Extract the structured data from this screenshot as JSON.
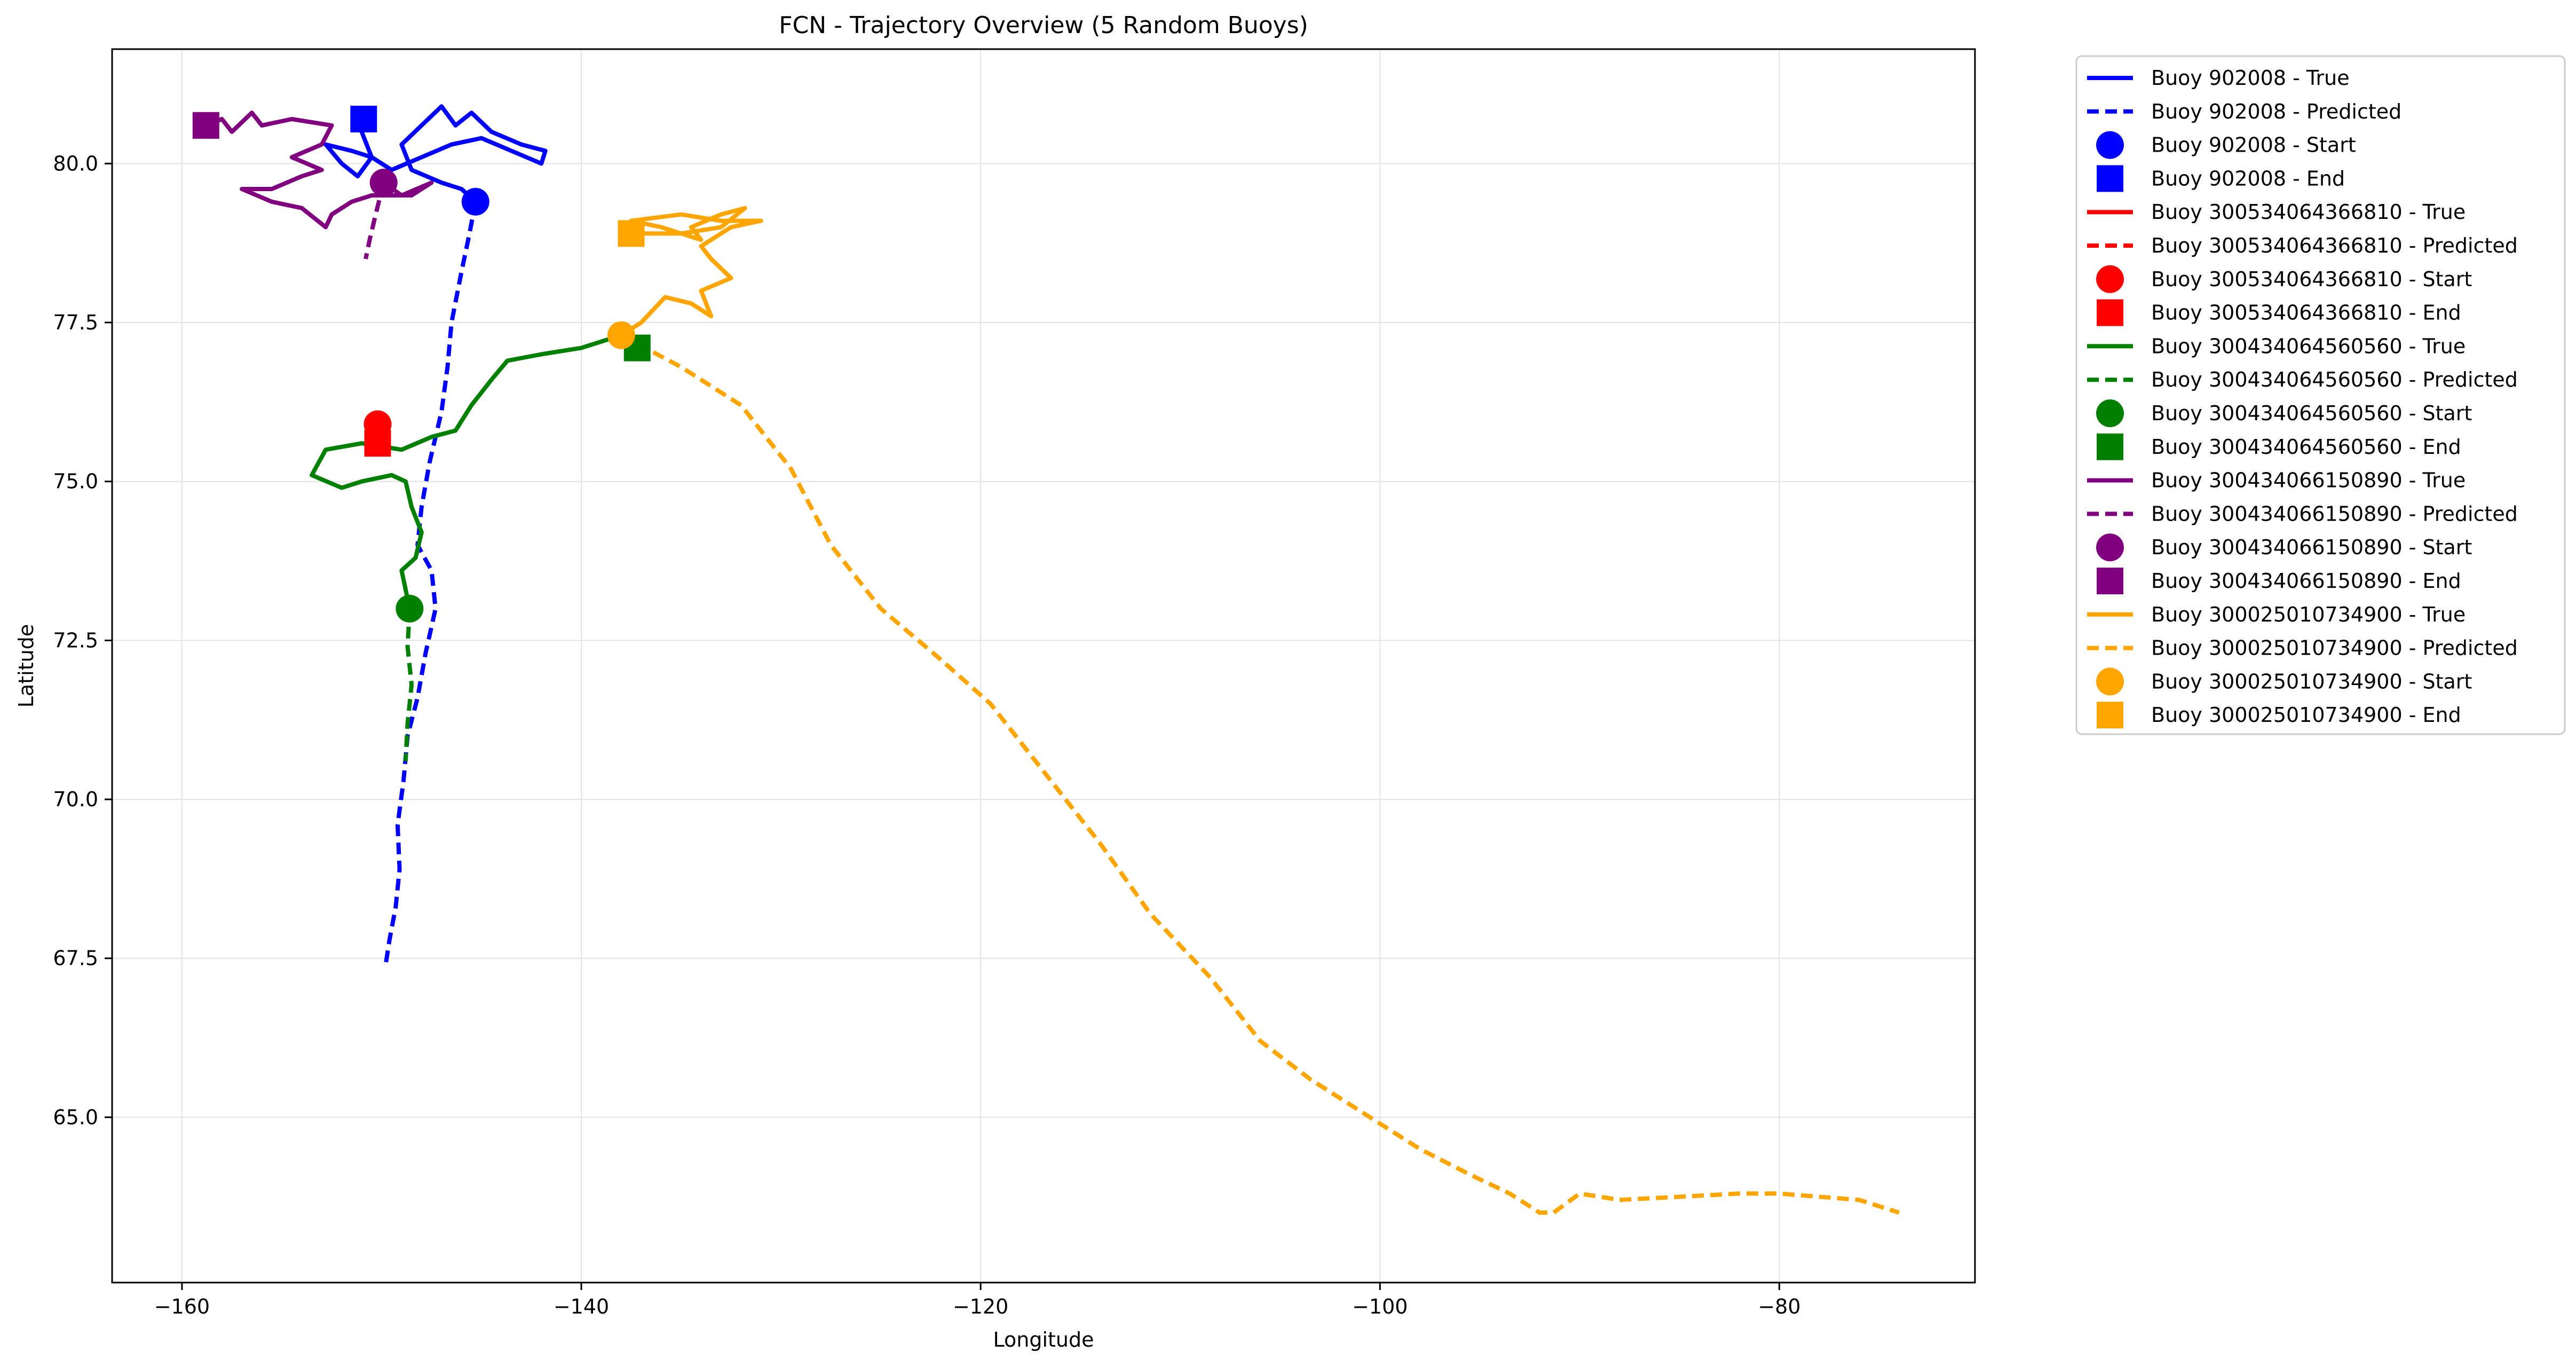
{
  "chart_data": {
    "type": "line",
    "title": "FCN - Trajectory Overview (5 Random Buoys)",
    "xlabel": "Longitude",
    "ylabel": "Latitude",
    "xlim": [
      -163.5,
      -70.2
    ],
    "ylim": [
      62.4,
      81.8
    ],
    "xticks": [
      -160,
      -140,
      -120,
      -100,
      -80
    ],
    "yticks": [
      65.0,
      67.5,
      70.0,
      72.5,
      75.0,
      77.5,
      80.0
    ],
    "xtick_labels": [
      "−160",
      "−140",
      "−120",
      "−100",
      "−80"
    ],
    "ytick_labels": [
      "65.0",
      "67.5",
      "70.0",
      "72.5",
      "75.0",
      "77.5",
      "80.0"
    ],
    "grid": true,
    "legend_position": "outside-right",
    "buoys": [
      {
        "id": "902008",
        "color": "#0000ff",
        "legend": [
          "Buoy 902008 - True",
          "Buoy 902008 - Predicted",
          "Buoy 902008 - Start",
          "Buoy 902008 - End"
        ],
        "start": [
          -145.3,
          79.4
        ],
        "end": [
          -150.9,
          80.7
        ],
        "true_path": [
          [
            -145.3,
            79.4
          ],
          [
            -146.0,
            79.6
          ],
          [
            -147.0,
            79.7
          ],
          [
            -148.5,
            79.9
          ],
          [
            -149.0,
            80.3
          ],
          [
            -148.0,
            80.6
          ],
          [
            -147.0,
            80.9
          ],
          [
            -146.3,
            80.6
          ],
          [
            -145.5,
            80.8
          ],
          [
            -144.5,
            80.5
          ],
          [
            -143.0,
            80.3
          ],
          [
            -141.8,
            80.2
          ],
          [
            -142.0,
            80.0
          ],
          [
            -143.5,
            80.2
          ],
          [
            -145.0,
            80.4
          ],
          [
            -146.5,
            80.3
          ],
          [
            -148.0,
            80.1
          ],
          [
            -149.5,
            79.9
          ],
          [
            -150.5,
            80.1
          ],
          [
            -151.5,
            80.2
          ],
          [
            -152.8,
            80.3
          ],
          [
            -152.0,
            80.0
          ],
          [
            -151.2,
            79.8
          ],
          [
            -150.5,
            80.1
          ],
          [
            -151.0,
            80.5
          ],
          [
            -150.9,
            80.7
          ]
        ],
        "pred_path": [
          [
            -145.3,
            79.4
          ],
          [
            -145.6,
            78.9
          ],
          [
            -146.0,
            78.3
          ],
          [
            -146.5,
            77.5
          ],
          [
            -146.7,
            76.8
          ],
          [
            -147.0,
            76.1
          ],
          [
            -147.6,
            75.3
          ],
          [
            -148.0,
            74.6
          ],
          [
            -148.2,
            74.0
          ],
          [
            -147.5,
            73.6
          ],
          [
            -147.3,
            73.0
          ],
          [
            -147.8,
            72.3
          ],
          [
            -148.2,
            71.6
          ],
          [
            -148.7,
            71.0
          ],
          [
            -148.9,
            70.3
          ],
          [
            -149.2,
            69.6
          ],
          [
            -149.1,
            68.9
          ],
          [
            -149.3,
            68.3
          ],
          [
            -149.6,
            67.8
          ],
          [
            -149.8,
            67.4
          ]
        ]
      },
      {
        "id": "300534064366810",
        "color": "#ff0000",
        "legend": [
          "Buoy 300534064366810 - True",
          "Buoy 300534064366810 - Predicted",
          "Buoy 300534064366810 - Start",
          "Buoy 300534064366810 - End"
        ],
        "start": [
          -150.2,
          75.9
        ],
        "end": [
          -150.2,
          75.6
        ],
        "true_path": [
          [
            -150.2,
            75.9
          ],
          [
            -150.3,
            75.75
          ],
          [
            -150.2,
            75.6
          ]
        ],
        "pred_path": [
          [
            -150.2,
            75.9
          ],
          [
            -150.1,
            75.75
          ],
          [
            -150.2,
            75.6
          ]
        ]
      },
      {
        "id": "300434064560560",
        "color": "#008000",
        "legend": [
          "Buoy 300434064560560 - True",
          "Buoy 300434064560560 - Predicted",
          "Buoy 300434064560560 - Start",
          "Buoy 300434064560560 - End"
        ],
        "start": [
          -148.6,
          73.0
        ],
        "end": [
          -137.2,
          77.1
        ],
        "true_path": [
          [
            -148.6,
            73.0
          ],
          [
            -149.0,
            73.6
          ],
          [
            -148.3,
            73.8
          ],
          [
            -148.0,
            74.2
          ],
          [
            -148.5,
            74.6
          ],
          [
            -148.8,
            75.0
          ],
          [
            -149.5,
            75.1
          ],
          [
            -151.0,
            75.0
          ],
          [
            -152.0,
            74.9
          ],
          [
            -153.5,
            75.1
          ],
          [
            -152.8,
            75.5
          ],
          [
            -151.0,
            75.6
          ],
          [
            -149.0,
            75.5
          ],
          [
            -147.5,
            75.7
          ],
          [
            -146.3,
            75.8
          ],
          [
            -145.5,
            76.2
          ],
          [
            -144.5,
            76.6
          ],
          [
            -143.7,
            76.9
          ],
          [
            -142.0,
            77.0
          ],
          [
            -140.0,
            77.1
          ],
          [
            -138.5,
            77.25
          ],
          [
            -137.2,
            77.1
          ]
        ],
        "pred_path": [
          [
            -148.6,
            73.0
          ],
          [
            -148.7,
            72.4
          ],
          [
            -148.5,
            71.8
          ],
          [
            -148.7,
            71.2
          ],
          [
            -148.8,
            70.6
          ]
        ]
      },
      {
        "id": "300434066150890",
        "color": "#800080",
        "legend": [
          "Buoy 300434066150890 - True",
          "Buoy 300434066150890 - Predicted",
          "Buoy 300434066150890 - Start",
          "Buoy 300434066150890 - End"
        ],
        "start": [
          -149.9,
          79.7
        ],
        "end": [
          -158.8,
          80.6
        ],
        "true_path": [
          [
            -149.9,
            79.7
          ],
          [
            -149.0,
            79.5
          ],
          [
            -147.5,
            79.7
          ],
          [
            -148.5,
            79.5
          ],
          [
            -150.5,
            79.5
          ],
          [
            -151.5,
            79.4
          ],
          [
            -152.5,
            79.2
          ],
          [
            -152.8,
            79.0
          ],
          [
            -154.0,
            79.3
          ],
          [
            -155.5,
            79.4
          ],
          [
            -157.0,
            79.6
          ],
          [
            -155.5,
            79.6
          ],
          [
            -154.0,
            79.8
          ],
          [
            -153.0,
            79.9
          ],
          [
            -154.5,
            80.1
          ],
          [
            -153.0,
            80.3
          ],
          [
            -152.5,
            80.6
          ],
          [
            -154.5,
            80.7
          ],
          [
            -156.0,
            80.6
          ],
          [
            -156.5,
            80.8
          ],
          [
            -157.5,
            80.5
          ],
          [
            -158.0,
            80.7
          ],
          [
            -158.8,
            80.6
          ]
        ],
        "pred_path": [
          [
            -149.9,
            79.7
          ],
          [
            -150.3,
            79.2
          ],
          [
            -150.6,
            78.8
          ],
          [
            -150.8,
            78.5
          ]
        ]
      },
      {
        "id": "300025010734900",
        "color": "#ffa500",
        "legend": [
          "Buoy 300025010734900 - True",
          "Buoy 300025010734900 - Predicted",
          "Buoy 300025010734900 - Start",
          "Buoy 300025010734900 - End"
        ],
        "start": [
          -138.0,
          77.3
        ],
        "end": [
          -137.5,
          78.9
        ],
        "true_path": [
          [
            -138.0,
            77.3
          ],
          [
            -137.0,
            77.5
          ],
          [
            -135.8,
            77.9
          ],
          [
            -134.5,
            77.8
          ],
          [
            -133.5,
            77.6
          ],
          [
            -134.0,
            78.0
          ],
          [
            -132.5,
            78.2
          ],
          [
            -133.5,
            78.5
          ],
          [
            -134.0,
            78.7
          ],
          [
            -132.5,
            79.0
          ],
          [
            -131.0,
            79.1
          ],
          [
            -133.0,
            79.1
          ],
          [
            -135.0,
            79.2
          ],
          [
            -137.5,
            79.1
          ],
          [
            -136.0,
            79.0
          ],
          [
            -134.0,
            78.8
          ],
          [
            -134.5,
            79.0
          ],
          [
            -133.0,
            79.2
          ],
          [
            -131.8,
            79.3
          ],
          [
            -133.0,
            79.0
          ],
          [
            -135.0,
            78.9
          ],
          [
            -137.5,
            78.9
          ]
        ],
        "pred_path": [
          [
            -138.0,
            77.3
          ],
          [
            -135.0,
            76.8
          ],
          [
            -132.0,
            76.2
          ],
          [
            -129.5,
            75.2
          ],
          [
            -127.5,
            74.0
          ],
          [
            -125.0,
            73.0
          ],
          [
            -122.0,
            72.2
          ],
          [
            -119.5,
            71.5
          ],
          [
            -117.0,
            70.5
          ],
          [
            -114.0,
            69.3
          ],
          [
            -111.5,
            68.2
          ],
          [
            -108.5,
            67.2
          ],
          [
            -106.0,
            66.2
          ],
          [
            -103.5,
            65.6
          ],
          [
            -101.0,
            65.1
          ],
          [
            -98.0,
            64.5
          ],
          [
            -95.5,
            64.1
          ],
          [
            -93.5,
            63.8
          ],
          [
            -92.0,
            63.5
          ],
          [
            -91.3,
            63.5
          ],
          [
            -90.0,
            63.8
          ],
          [
            -88.0,
            63.7
          ],
          [
            -85.0,
            63.75
          ],
          [
            -82.0,
            63.8
          ],
          [
            -80.0,
            63.8
          ],
          [
            -78.0,
            63.75
          ],
          [
            -76.0,
            63.7
          ],
          [
            -74.0,
            63.5
          ]
        ]
      }
    ]
  }
}
